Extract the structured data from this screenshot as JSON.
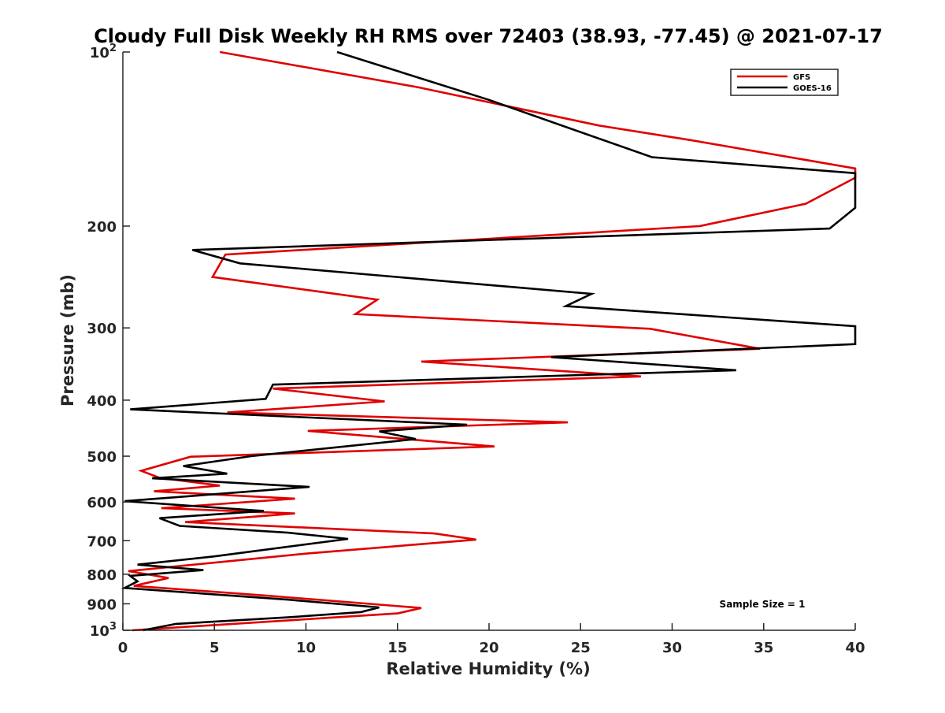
{
  "colors": {
    "GFS": "#e00000",
    "GOES-16": "#000000",
    "axis": "#262626",
    "background": "#ffffff"
  },
  "chart_data": {
    "type": "line",
    "title": "Cloudy Full Disk Weekly RH RMS over 72403 (38.93, -77.45) @ 2021-07-17",
    "xlabel": "Relative Humidity (%)",
    "ylabel": "Pressure (mb)",
    "xlim": [
      0,
      40
    ],
    "ylim": [
      100,
      1000
    ],
    "yscale": "log",
    "y_reversed": true,
    "grid": false,
    "legend_position": "top-right",
    "xticks": [
      0,
      5,
      10,
      15,
      20,
      25,
      30,
      35,
      40
    ],
    "yticks": [
      100,
      200,
      300,
      400,
      500,
      600,
      700,
      800,
      900,
      1000
    ],
    "ytick_labels": {
      "100": {
        "base": "10",
        "exp": "2"
      },
      "200": "200",
      "300": "300",
      "400": "400",
      "500": "500",
      "600": "600",
      "700": "700",
      "800": "800",
      "900": "900",
      "1000": {
        "base": "10",
        "exp": "3"
      }
    },
    "annotation": "Sample Size = 1",
    "series": [
      {
        "name": "GFS",
        "points": [
          [
            5.3,
            100
          ],
          [
            16.1,
            115
          ],
          [
            26.0,
            134
          ],
          [
            31.0,
            142
          ],
          [
            40.0,
            159
          ],
          [
            40.0,
            165
          ],
          [
            37.3,
            183
          ],
          [
            31.5,
            200
          ],
          [
            5.6,
            224
          ],
          [
            4.9,
            245
          ],
          [
            13.9,
            268
          ],
          [
            12.7,
            284
          ],
          [
            28.8,
            301
          ],
          [
            34.8,
            326
          ],
          [
            16.3,
            343
          ],
          [
            28.3,
            364
          ],
          [
            8.2,
            382
          ],
          [
            14.3,
            402
          ],
          [
            5.7,
            420
          ],
          [
            24.3,
            437
          ],
          [
            10.1,
            452
          ],
          [
            20.3,
            481
          ],
          [
            3.7,
            501
          ],
          [
            1.0,
            530
          ],
          [
            2.0,
            545
          ],
          [
            5.3,
            562
          ],
          [
            1.7,
            575
          ],
          [
            9.4,
            592
          ],
          [
            2.1,
            615
          ],
          [
            9.4,
            628
          ],
          [
            3.4,
            650
          ],
          [
            17.0,
            680
          ],
          [
            19.3,
            697
          ],
          [
            10.0,
            737
          ],
          [
            0.3,
            790
          ],
          [
            2.5,
            812
          ],
          [
            0.6,
            838
          ],
          [
            8.0,
            872
          ],
          [
            16.3,
            915
          ],
          [
            15.0,
            935
          ],
          [
            0.5,
            1000
          ]
        ]
      },
      {
        "name": "GOES-16",
        "points": [
          [
            11.7,
            100
          ],
          [
            20.0,
            121
          ],
          [
            28.9,
            152
          ],
          [
            40.0,
            162
          ],
          [
            40.0,
            186
          ],
          [
            38.6,
            202
          ],
          [
            3.8,
            220
          ],
          [
            6.4,
            232
          ],
          [
            25.6,
            262
          ],
          [
            24.2,
            275
          ],
          [
            40.0,
            298
          ],
          [
            40.0,
            320
          ],
          [
            23.4,
            337
          ],
          [
            33.5,
            355
          ],
          [
            8.2,
            376
          ],
          [
            7.8,
            398
          ],
          [
            0.4,
            415
          ],
          [
            18.8,
            441
          ],
          [
            14.0,
            453
          ],
          [
            16.0,
            467
          ],
          [
            7.0,
            500
          ],
          [
            3.3,
            520
          ],
          [
            5.7,
            536
          ],
          [
            1.6,
            546
          ],
          [
            10.2,
            565
          ],
          [
            0.1,
            598
          ],
          [
            7.7,
            622
          ],
          [
            2.0,
            640
          ],
          [
            3.1,
            660
          ],
          [
            9.0,
            678
          ],
          [
            12.3,
            695
          ],
          [
            5.0,
            745
          ],
          [
            0.8,
            770
          ],
          [
            4.4,
            787
          ],
          [
            0.4,
            805
          ],
          [
            0.8,
            823
          ],
          [
            0.1,
            845
          ],
          [
            9.0,
            885
          ],
          [
            14.0,
            913
          ],
          [
            13.0,
            930
          ],
          [
            9.0,
            950
          ],
          [
            2.9,
            975
          ],
          [
            1.1,
            1000
          ]
        ]
      }
    ]
  }
}
